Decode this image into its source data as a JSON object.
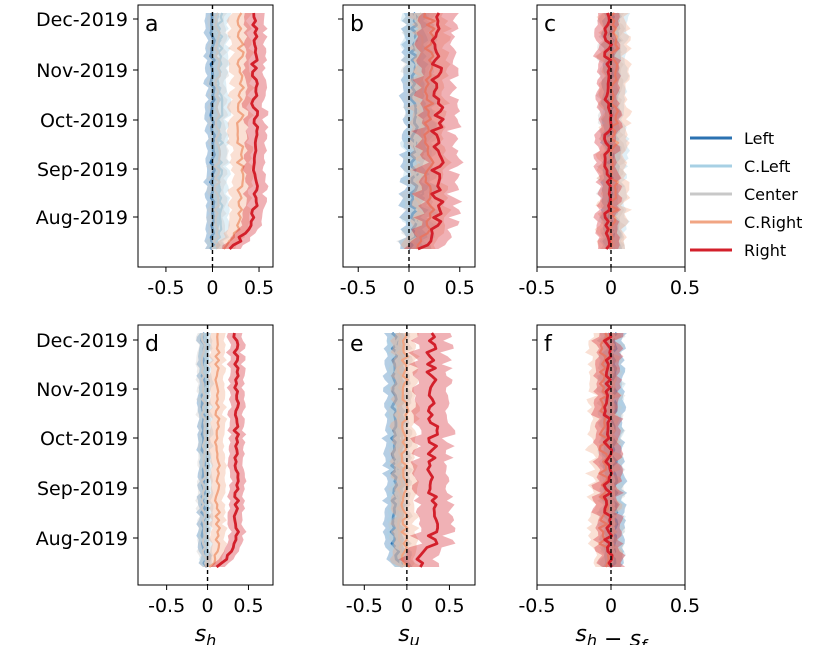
{
  "chart_data": {
    "type": "line",
    "series_styles": [
      {
        "name": "Left",
        "color": "#2b72b1"
      },
      {
        "name": "C.Left",
        "color": "#a7d0e4"
      },
      {
        "name": "Center",
        "color": "#c8c8c8"
      },
      {
        "name": "C.Right",
        "color": "#f1a583"
      },
      {
        "name": "Right",
        "color": "#d3202b"
      }
    ],
    "y_time_axis": {
      "tick_labels": [
        "Aug-2019",
        "Sep-2019",
        "Oct-2019",
        "Nov-2019",
        "Dec-2019"
      ],
      "range": [
        "2019-07-10",
        "2019-12-05"
      ]
    },
    "legend_position": "right",
    "panels": [
      {
        "letter": "a",
        "xlabel": "",
        "xlim": [
          -0.8,
          0.65
        ],
        "xticks": [
          -0.5,
          0,
          0.5
        ],
        "xtick_labels": [
          "-0.5",
          "0",
          "0.5"
        ],
        "means": {
          "Left": 0.0,
          "C.Left": 0.08,
          "Center": 0.05,
          "C.Right": 0.3,
          "Right": 0.45
        },
        "bands": {
          "Left": 0.08,
          "C.Left": 0.1,
          "Center": 0.1,
          "C.Right": 0.12,
          "Right": 0.12
        }
      },
      {
        "letter": "b",
        "xlabel": "",
        "xlim": [
          -0.65,
          0.65
        ],
        "xticks": [
          -0.5,
          0,
          0.5
        ],
        "xtick_labels": [
          "-0.5",
          "0",
          "0.5"
        ],
        "means": {
          "Left": 0.05,
          "C.Left": 0.1,
          "Center": 0.1,
          "C.Right": 0.2,
          "Right": 0.28
        },
        "bands": {
          "Left": 0.12,
          "C.Left": 0.15,
          "Center": 0.15,
          "C.Right": 0.18,
          "Right": 0.2
        }
      },
      {
        "letter": "c",
        "xlabel": "",
        "xlim": [
          -0.5,
          0.5
        ],
        "xticks": [
          -0.5,
          0,
          0.5
        ],
        "xtick_labels": [
          "-0.5",
          "0",
          "0.5"
        ],
        "means": {
          "Left": 0.0,
          "C.Left": 0.03,
          "Center": 0.0,
          "C.Right": 0.02,
          "Right": -0.02
        },
        "bands": {
          "Left": 0.06,
          "C.Left": 0.08,
          "Center": 0.08,
          "C.Right": 0.1,
          "Right": 0.08
        }
      },
      {
        "letter": "d",
        "xlabel": "s_h",
        "xlim": [
          -0.85,
          0.8
        ],
        "xticks": [
          -0.5,
          0,
          0.5
        ],
        "xtick_labels": [
          "-0.5",
          "0",
          "0.5"
        ],
        "means": {
          "Left": -0.05,
          "C.Left": -0.02,
          "Center": -0.05,
          "C.Right": 0.12,
          "Right": 0.35
        },
        "bands": {
          "Left": 0.07,
          "C.Left": 0.08,
          "Center": 0.08,
          "C.Right": 0.1,
          "Right": 0.1
        }
      },
      {
        "letter": "e",
        "xlabel": "s_u",
        "xlim": [
          -0.75,
          0.8
        ],
        "xticks": [
          -0.5,
          0,
          0.5
        ],
        "xtick_labels": [
          "-0.5",
          "0",
          "0.5"
        ],
        "means": {
          "Left": -0.15,
          "C.Left": -0.1,
          "Center": -0.08,
          "C.Right": -0.02,
          "Right": 0.3
        },
        "bands": {
          "Left": 0.12,
          "C.Left": 0.12,
          "Center": 0.12,
          "C.Right": 0.15,
          "Right": 0.22
        }
      },
      {
        "letter": "f",
        "xlabel": "s_h − s_f",
        "xlim": [
          -0.5,
          0.5
        ],
        "xticks": [
          -0.5,
          0,
          0.5
        ],
        "xtick_labels": [
          "-0.5",
          "0",
          "0.5"
        ],
        "means": {
          "Left": 0.02,
          "C.Left": 0.0,
          "Center": 0.0,
          "C.Right": -0.05,
          "Right": -0.02
        },
        "bands": {
          "Left": 0.07,
          "C.Left": 0.08,
          "Center": 0.08,
          "C.Right": 0.1,
          "Right": 0.09
        }
      }
    ]
  }
}
